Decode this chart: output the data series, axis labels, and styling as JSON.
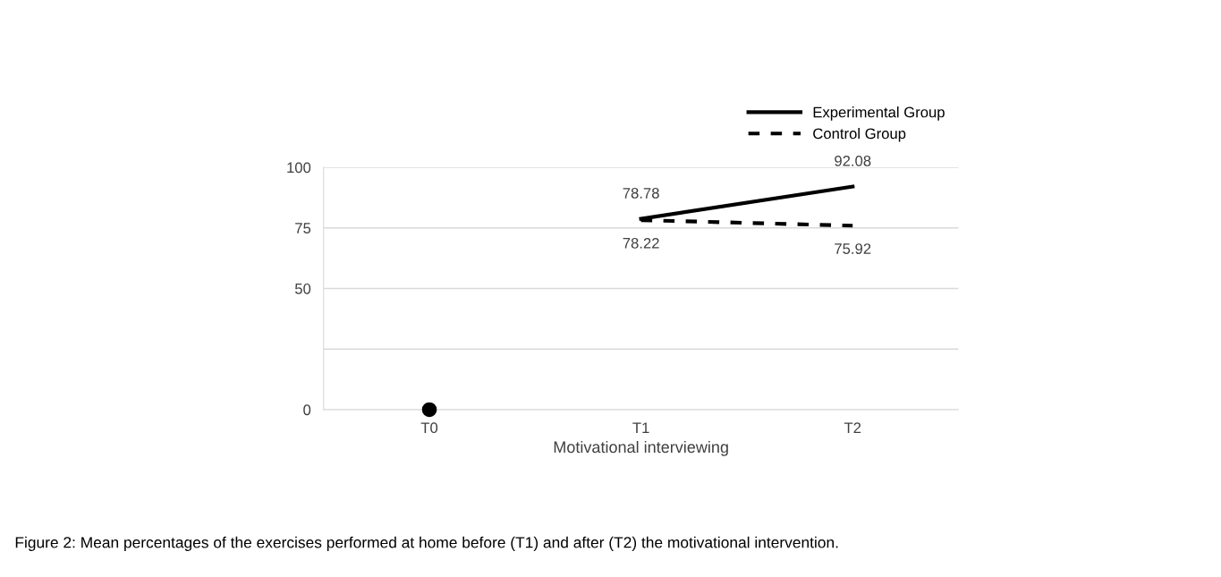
{
  "chart_data": {
    "type": "line",
    "xlabel": "Motivational interviewing",
    "categories": [
      "T0",
      "T1",
      "T2"
    ],
    "series": [
      {
        "name": "Experimental Group",
        "color": "#000000",
        "line_style": "solid",
        "values": [
          null,
          78.78,
          92.08
        ],
        "value_labels": [
          null,
          "78.78",
          "92.08"
        ]
      },
      {
        "name": "Control Group",
        "color": "#000000",
        "line_style": "dashed",
        "values": [
          null,
          78.22,
          75.92
        ],
        "value_labels": [
          null,
          "78.22",
          "75.92"
        ]
      },
      {
        "type": "scatter",
        "color": "#000000",
        "marker": "circle",
        "values": [
          0,
          null,
          null
        ]
      }
    ],
    "ylim": [
      0,
      100
    ],
    "yticks": [
      0,
      {
        "value": 25,
        "label": null
      },
      50,
      75,
      100
    ],
    "grid": "y",
    "legend": "top right",
    "annotations": [
      "Figure 2: Mean percentages of the exercises performed at home before (T1) and after (T2) the motivational intervention."
    ]
  }
}
